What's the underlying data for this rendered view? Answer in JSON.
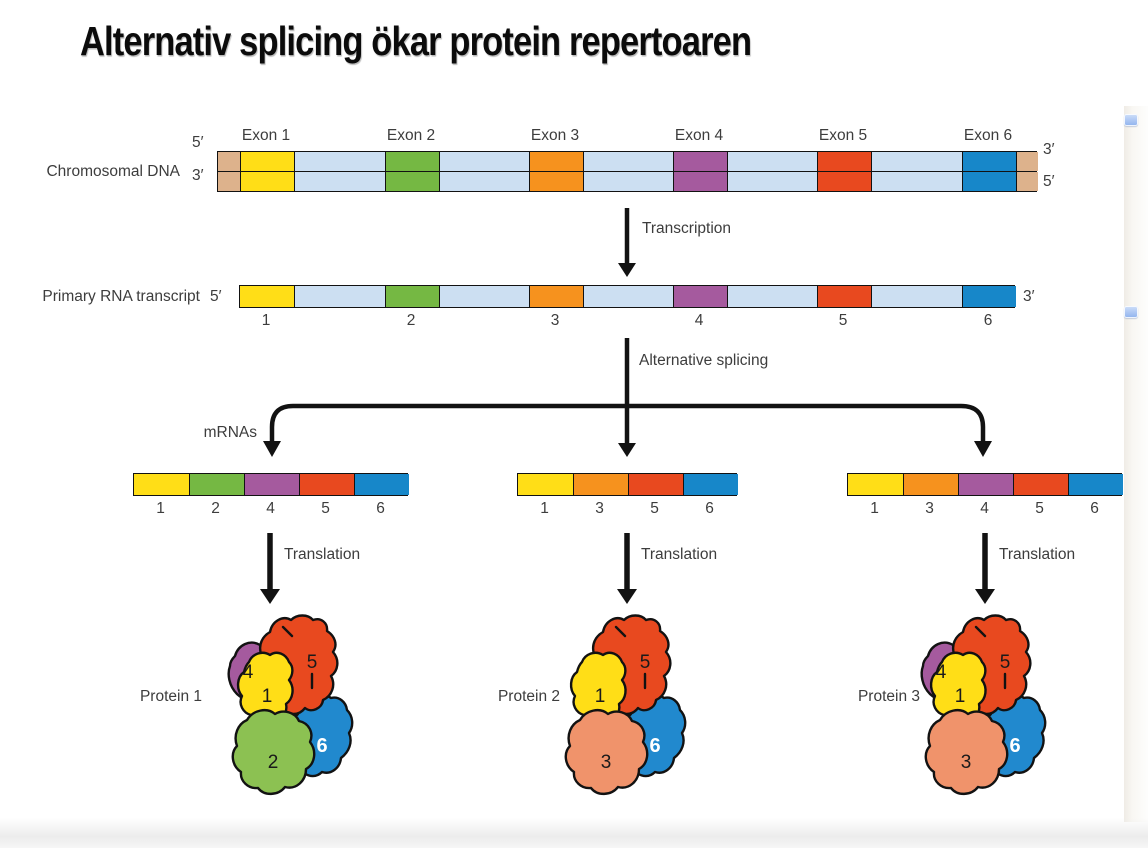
{
  "title": "Alternativ splicing ökar protein repertoaren",
  "dna_row": {
    "label": "Chromosomal DNA",
    "left_top_end": "5′",
    "left_bottom_end": "3′",
    "right_top_end": "3′",
    "right_bottom_end": "5′",
    "exon_labels": [
      "Exon 1",
      "Exon 2",
      "Exon 3",
      "Exon 4",
      "Exon 5",
      "Exon 6"
    ]
  },
  "transcription": {
    "label": "Transcription"
  },
  "rna_row": {
    "label": "Primary RNA transcript",
    "left_end": "5′",
    "right_end": "3′",
    "exon_numbers": [
      "1",
      "2",
      "3",
      "4",
      "5",
      "6"
    ]
  },
  "splicing": {
    "label": "Alternative splicing",
    "mrnas_label": "mRNAs"
  },
  "translation": {
    "label": "Translation"
  },
  "mrnas": [
    {
      "exons": [
        "1",
        "2",
        "4",
        "5",
        "6"
      ]
    },
    {
      "exons": [
        "1",
        "3",
        "5",
        "6"
      ]
    },
    {
      "exons": [
        "1",
        "3",
        "4",
        "5",
        "6"
      ]
    }
  ],
  "proteins": [
    {
      "label": "Protein 1",
      "subunits": [
        "4",
        "5",
        "1",
        "2",
        "6"
      ]
    },
    {
      "label": "Protein 2",
      "subunits": [
        "5",
        "1",
        "3",
        "6"
      ]
    },
    {
      "label": "Protein 3",
      "subunits": [
        "4",
        "5",
        "1",
        "3",
        "6"
      ]
    }
  ],
  "colors": {
    "exon_1": "#FFDE17",
    "exon_2": "#75B843",
    "exon_3": "#F6921E",
    "exon_4": "#A55A9E",
    "exon_5": "#E8491F",
    "exon_6": "#1787C9",
    "intron": "#CCDFF2",
    "dna_cap": "#DDB28C",
    "blob_1_yellow": "#FFDE17",
    "blob_2_green": "#8CC152",
    "blob_3_salmon": "#F0936B",
    "blob_4_purple": "#A55A9E",
    "blob_5_red": "#E8491F",
    "blob_6_blue": "#2189CE",
    "outline": "#121212"
  }
}
